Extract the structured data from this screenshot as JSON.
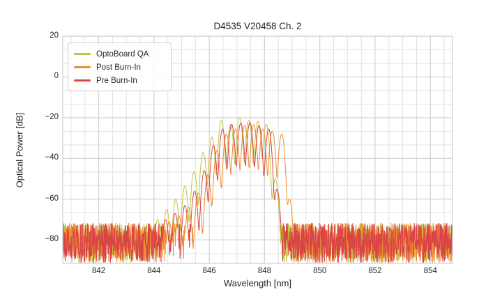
{
  "figure": {
    "background": "#ffffff",
    "text_color": "#262626",
    "grid_minor_color": "#e2e2e2",
    "grid_major_color": "#d4d4d4",
    "border_color": "#cfcfcf"
  },
  "chart_data": {
    "type": "line",
    "title": "D4535 V20458 Ch. 2",
    "xlabel": "Wavelength [nm]",
    "ylabel": "Optical Power [dB]",
    "xlim": [
      840.7,
      854.8
    ],
    "ylim": [
      -91.5,
      20
    ],
    "x_major_ticks": [
      842,
      844,
      846,
      848,
      850,
      852,
      854
    ],
    "y_major_ticks": [
      20,
      0,
      -20,
      -40,
      -60,
      -80
    ],
    "x_minor_step": 0.5,
    "y_minor_step": 6.6667,
    "grid": "major+minor",
    "legend_position": "upper-left",
    "description": "Optical spectra of laser modes around 845-849 nm with broadband noise floor",
    "noise_floor": {
      "top_db": -71.8,
      "bottom_db": -91.2
    },
    "mode_width_nm": 0.07,
    "sample_step_nm": 0.01,
    "series": [
      {
        "name": "OptoBoard QA",
        "color": "#c3c43c",
        "seed": 11,
        "modes": [
          [
            844.13,
            -70
          ],
          [
            844.46,
            -65
          ],
          [
            844.79,
            -60
          ],
          [
            845.12,
            -53.5
          ],
          [
            845.45,
            -46.5
          ],
          [
            845.78,
            -37
          ],
          [
            846.1,
            -29.5
          ],
          [
            846.44,
            -21.3
          ],
          [
            846.77,
            -23.5
          ],
          [
            847.1,
            -19.8
          ],
          [
            847.43,
            -21.3
          ],
          [
            847.76,
            -21.8
          ],
          [
            848.06,
            -23.2
          ],
          [
            848.39,
            -50
          ]
        ]
      },
      {
        "name": "Post Burn-In",
        "color": "#f08c2e",
        "seed": 22,
        "modes": [
          [
            844.55,
            -71
          ],
          [
            844.9,
            -68
          ],
          [
            845.25,
            -64
          ],
          [
            845.6,
            -57
          ],
          [
            845.95,
            -48
          ],
          [
            846.28,
            -36
          ],
          [
            846.62,
            -28
          ],
          [
            846.95,
            -25.5
          ],
          [
            847.28,
            -23.8
          ],
          [
            847.61,
            -23.4
          ],
          [
            847.94,
            -25.5
          ],
          [
            848.28,
            -26.5
          ],
          [
            848.62,
            -28
          ],
          [
            848.9,
            -60
          ]
        ]
      },
      {
        "name": "Pre Burn-In",
        "color": "#d94545",
        "seed": 33,
        "modes": [
          [
            844.42,
            -70
          ],
          [
            844.77,
            -67
          ],
          [
            845.12,
            -63
          ],
          [
            845.47,
            -56
          ],
          [
            845.82,
            -46
          ],
          [
            846.15,
            -33.5
          ],
          [
            846.48,
            -25.5
          ],
          [
            846.81,
            -23.2
          ],
          [
            847.14,
            -22.6
          ],
          [
            847.47,
            -22.4
          ],
          [
            847.8,
            -23.8
          ],
          [
            848.15,
            -25.5
          ],
          [
            848.45,
            -55
          ]
        ]
      }
    ]
  }
}
